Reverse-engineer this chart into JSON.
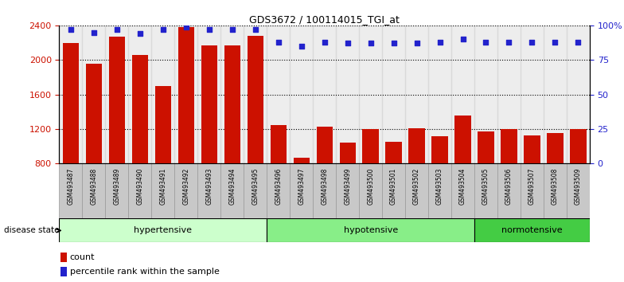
{
  "title": "GDS3672 / 100114015_TGI_at",
  "samples": [
    "GSM493487",
    "GSM493488",
    "GSM493489",
    "GSM493490",
    "GSM493491",
    "GSM493492",
    "GSM493493",
    "GSM493494",
    "GSM493495",
    "GSM493496",
    "GSM493497",
    "GSM493498",
    "GSM493499",
    "GSM493500",
    "GSM493501",
    "GSM493502",
    "GSM493503",
    "GSM493504",
    "GSM493505",
    "GSM493506",
    "GSM493507",
    "GSM493508",
    "GSM493509"
  ],
  "counts": [
    2200,
    1960,
    2270,
    2060,
    1700,
    2380,
    2170,
    2170,
    2280,
    1250,
    870,
    1230,
    1040,
    1200,
    1050,
    1210,
    1120,
    1360,
    1170,
    1200,
    1130,
    1150,
    1200
  ],
  "percentile_ranks": [
    97,
    95,
    97,
    94,
    97,
    99,
    97,
    97,
    97,
    88,
    85,
    88,
    87,
    87,
    87,
    87,
    88,
    90,
    88,
    88,
    88,
    88,
    88
  ],
  "groups": [
    {
      "label": "hypertensive",
      "start": 0,
      "end": 9,
      "color": "#ccffcc"
    },
    {
      "label": "hypotensive",
      "start": 9,
      "end": 18,
      "color": "#88ee88"
    },
    {
      "label": "normotensive",
      "start": 18,
      "end": 23,
      "color": "#44cc44"
    }
  ],
  "ylim_left": [
    800,
    2400
  ],
  "ylim_right": [
    0,
    100
  ],
  "yticks_left": [
    800,
    1200,
    1600,
    2000,
    2400
  ],
  "yticks_right": [
    0,
    25,
    50,
    75,
    100
  ],
  "bar_color": "#cc1100",
  "dot_color": "#2222cc",
  "bg_color": "#ffffff",
  "grid_color": "#000000",
  "xtick_bg_color": "#cccccc",
  "label_count": "count",
  "label_percentile": "percentile rank within the sample",
  "disease_state_label": "disease state"
}
